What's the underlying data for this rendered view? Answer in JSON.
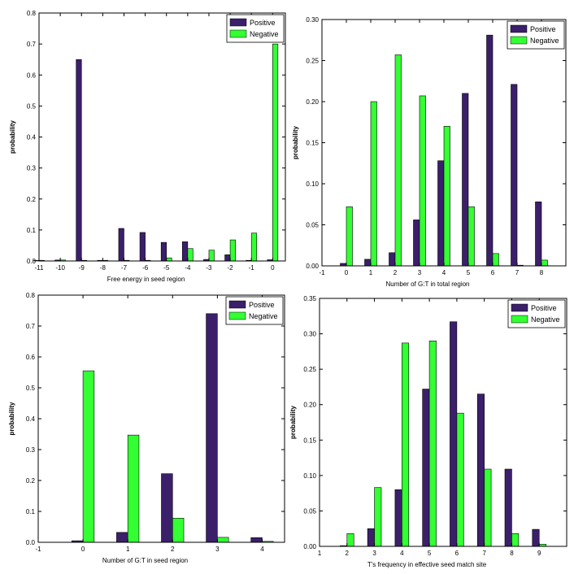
{
  "legend_labels": [
    "Positive",
    "Negative"
  ],
  "colors": {
    "positive": "#3b1f6b",
    "negative": "#33ff33"
  },
  "chart_data": [
    {
      "type": "bar",
      "title": "",
      "xlabel": "Free energy in seed region",
      "ylabel": "probability",
      "xlim": [
        -11,
        0.6
      ],
      "ylim": [
        0,
        0.8
      ],
      "xticks": [
        -11,
        -10,
        -9,
        -8,
        -7,
        -6,
        -5,
        -4,
        -3,
        -2,
        -1,
        0
      ],
      "yticks": [
        0.0,
        0.1,
        0.2,
        0.3,
        0.4,
        0.5,
        0.6,
        0.7,
        0.8
      ],
      "x": [
        -11,
        -10,
        -9,
        -8,
        -7,
        -6,
        -5,
        -4,
        -3,
        -2,
        -1,
        0
      ],
      "series": [
        {
          "name": "Positive",
          "values": [
            0.0,
            0.003,
            0.65,
            0.002,
            0.105,
            0.092,
            0.06,
            0.062,
            0.005,
            0.02,
            0.0,
            0.004
          ]
        },
        {
          "name": "Negative",
          "values": [
            0.0,
            0.003,
            0.0,
            0.002,
            0.002,
            0.002,
            0.01,
            0.04,
            0.035,
            0.068,
            0.09,
            0.7
          ]
        }
      ],
      "legend": "top-right",
      "grid": false
    },
    {
      "type": "bar",
      "title": "",
      "xlabel": "Number of G:T in total region",
      "ylabel": "probability",
      "xlim": [
        -1,
        9
      ],
      "ylim": [
        0,
        0.3
      ],
      "xticks": [
        -1,
        0,
        1,
        2,
        3,
        4,
        5,
        6,
        7,
        8
      ],
      "yticks": [
        0.0,
        0.05,
        0.1,
        0.15,
        0.2,
        0.25,
        0.3
      ],
      "x": [
        0,
        1,
        2,
        3,
        4,
        5,
        6,
        7,
        8
      ],
      "series": [
        {
          "name": "Positive",
          "values": [
            0.003,
            0.008,
            0.016,
            0.056,
            0.128,
            0.21,
            0.281,
            0.221,
            0.078
          ]
        },
        {
          "name": "Negative",
          "values": [
            0.072,
            0.2,
            0.257,
            0.207,
            0.17,
            0.072,
            0.015,
            0.0,
            0.007
          ]
        }
      ],
      "legend": "top-right",
      "grid": false
    },
    {
      "type": "bar",
      "title": "",
      "xlabel": "Number of G:T in seed region",
      "ylabel": "probability",
      "xlim": [
        -1,
        4.5
      ],
      "ylim": [
        0,
        0.8
      ],
      "xticks": [
        -1,
        0,
        1,
        2,
        3,
        4
      ],
      "yticks": [
        0.0,
        0.1,
        0.2,
        0.3,
        0.4,
        0.5,
        0.6,
        0.7,
        0.8
      ],
      "x": [
        0,
        1,
        2,
        3,
        4
      ],
      "series": [
        {
          "name": "Positive",
          "values": [
            0.005,
            0.032,
            0.222,
            0.74,
            0.015
          ]
        },
        {
          "name": "Negative",
          "values": [
            0.555,
            0.347,
            0.078,
            0.016,
            0.003
          ]
        }
      ],
      "legend": "top-right",
      "grid": false
    },
    {
      "type": "bar",
      "title": "",
      "xlabel": "T's frequency in effective seed match site",
      "ylabel": "probability",
      "xlim": [
        1,
        10
      ],
      "ylim": [
        0,
        0.35
      ],
      "xticks": [
        1,
        2,
        3,
        4,
        5,
        6,
        7,
        8,
        9
      ],
      "yticks": [
        0.0,
        0.05,
        0.1,
        0.15,
        0.2,
        0.25,
        0.3,
        0.35
      ],
      "x": [
        2,
        3,
        4,
        5,
        6,
        7,
        8,
        9
      ],
      "series": [
        {
          "name": "Positive",
          "values": [
            0.0,
            0.025,
            0.08,
            0.222,
            0.317,
            0.215,
            0.109,
            0.024
          ]
        },
        {
          "name": "Negative",
          "values": [
            0.018,
            0.083,
            0.287,
            0.29,
            0.188,
            0.109,
            0.018,
            0.003
          ]
        }
      ],
      "legend": "top-right",
      "grid": false
    }
  ]
}
